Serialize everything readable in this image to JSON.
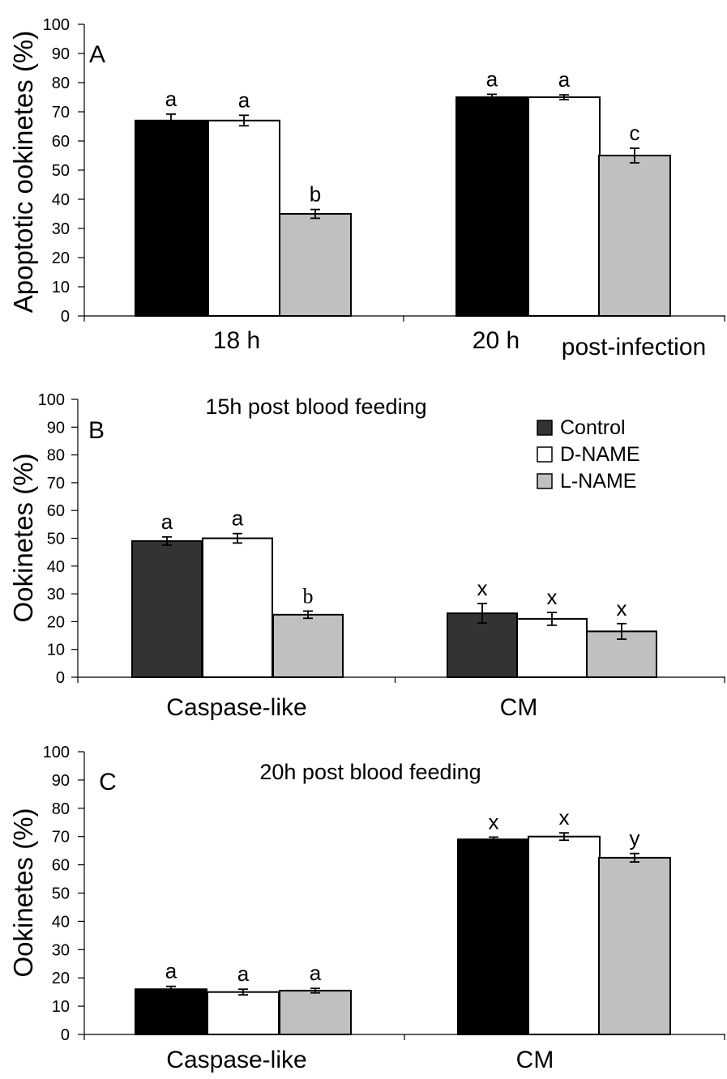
{
  "chart_data": [
    {
      "type": "bar",
      "panel_label": "A",
      "title": "",
      "ylabel": "Apoptotic ookinetes (%)",
      "xlabel": "post-infection",
      "ylim": [
        0,
        100
      ],
      "yticks": [
        0,
        10,
        20,
        30,
        40,
        50,
        60,
        70,
        80,
        90,
        100
      ],
      "categories": [
        "18 h",
        "20 h"
      ],
      "series": [
        {
          "values": [
            67,
            75
          ],
          "errors": [
            2.2,
            1.0
          ],
          "letters": [
            "a",
            "a"
          ],
          "color": "#000000"
        },
        {
          "values": [
            67,
            75
          ],
          "errors": [
            1.8,
            0.8
          ],
          "letters": [
            "a",
            "a"
          ],
          "color": "#ffffff"
        },
        {
          "values": [
            35,
            55
          ],
          "errors": [
            1.5,
            2.5
          ],
          "letters": [
            "b",
            "c"
          ],
          "color": "#c0c0c0"
        }
      ],
      "grid": false
    },
    {
      "type": "bar",
      "panel_label": "B",
      "title": "15h post blood feeding",
      "ylabel": "Ookinetes (%)",
      "xlabel": "",
      "ylim": [
        0,
        100
      ],
      "yticks": [
        0,
        10,
        20,
        30,
        40,
        50,
        60,
        70,
        80,
        90,
        100
      ],
      "categories": [
        "Caspase-like",
        "CM"
      ],
      "series": [
        {
          "name": "Control",
          "values": [
            49,
            23
          ],
          "errors": [
            1.5,
            3.5
          ],
          "letters": [
            "a",
            "x"
          ],
          "color": "#333333"
        },
        {
          "name": "D-NAME",
          "values": [
            50,
            21
          ],
          "errors": [
            1.7,
            2.3
          ],
          "letters": [
            "a",
            "x"
          ],
          "color": "#ffffff"
        },
        {
          "name": "L-NAME",
          "values": [
            22.5,
            16.5
          ],
          "errors": [
            1.3,
            2.8
          ],
          "letters": [
            "b",
            "x"
          ],
          "color": "#c0c0c0"
        }
      ],
      "legend_position": "top-right",
      "grid": false
    },
    {
      "type": "bar",
      "panel_label": "C",
      "title": "20h post blood feeding",
      "ylabel": "Ookinetes (%)",
      "xlabel": "",
      "ylim": [
        0,
        100
      ],
      "yticks": [
        0,
        10,
        20,
        30,
        40,
        50,
        60,
        70,
        80,
        90,
        100
      ],
      "categories": [
        "Caspase-like",
        "CM"
      ],
      "series": [
        {
          "values": [
            16,
            69
          ],
          "errors": [
            1.0,
            0.8
          ],
          "letters": [
            "a",
            "x"
          ],
          "color": "#000000"
        },
        {
          "values": [
            15,
            70
          ],
          "errors": [
            1.0,
            1.3
          ],
          "letters": [
            "a",
            "x"
          ],
          "color": "#ffffff"
        },
        {
          "values": [
            15.5,
            62.5
          ],
          "errors": [
            0.8,
            1.5
          ],
          "letters": [
            "a",
            "y"
          ],
          "color": "#c0c0c0"
        }
      ],
      "grid": false
    }
  ]
}
